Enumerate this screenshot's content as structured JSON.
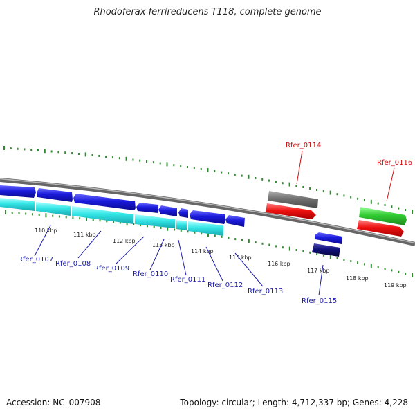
{
  "title": "Rhodoferax ferrireducens T118, complete genome",
  "footer": {
    "accession": "Accession: NC_007908",
    "summary": "Topology: circular; Length: 4,712,337 bp; Genes: 4,228"
  },
  "colors": {
    "backbone": "#808080",
    "tick": "#2e8b2e",
    "forward_cds": "#1a1adc",
    "reverse_cds": "#33e6e6",
    "highlight_red": "#ee1111",
    "gray_feature": "#6e6e6e",
    "green_feature": "#33cc33",
    "navy_feature": "#0b0b6e",
    "label_blue": "#1a1aaa",
    "label_red": "#cc1111"
  },
  "scale_ticks": [
    "110 kbp",
    "111 kbp",
    "112 kbp",
    "113 kbp",
    "114 kbp",
    "115 kbp",
    "116 kbp",
    "117 kbp",
    "118 kbp",
    "119 kbp"
  ],
  "gene_labels": [
    {
      "text": "Rfer_0107",
      "color": "blue"
    },
    {
      "text": "Rfer_0108",
      "color": "blue"
    },
    {
      "text": "Rfer_0109",
      "color": "blue"
    },
    {
      "text": "Rfer_0110",
      "color": "blue"
    },
    {
      "text": "Rfer_0111",
      "color": "blue"
    },
    {
      "text": "Rfer_0112",
      "color": "blue"
    },
    {
      "text": "Rfer_0113",
      "color": "blue"
    },
    {
      "text": "Rfer_0114",
      "color": "red"
    },
    {
      "text": "Rfer_0115",
      "color": "blue"
    },
    {
      "text": "Rfer_0116",
      "color": "red"
    }
  ]
}
